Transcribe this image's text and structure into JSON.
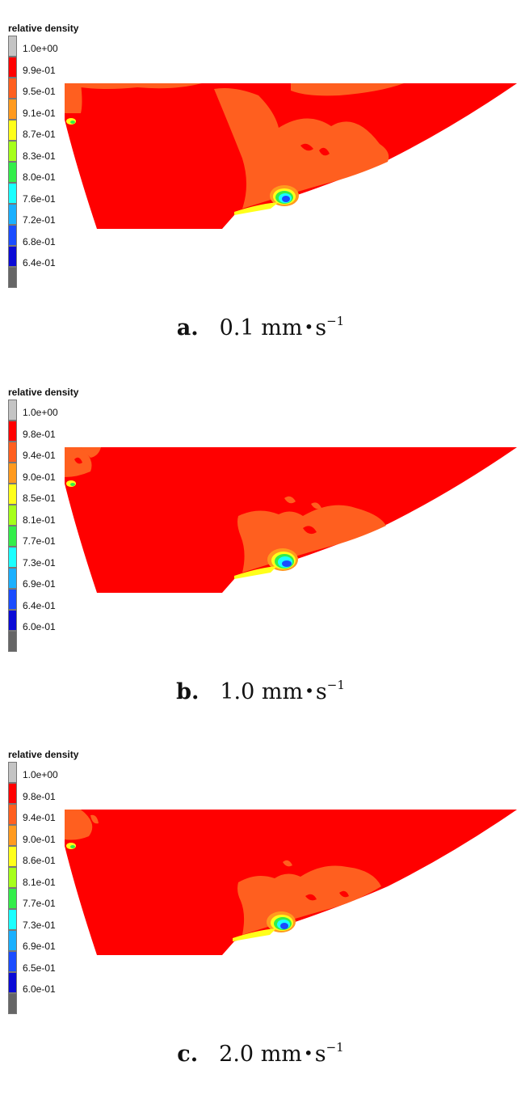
{
  "legend_title": "relative density",
  "colors": {
    "gray_top": "#c4c4c4",
    "red": "#ff0000",
    "orange_red": "#ff5f1f",
    "orange": "#ff9a1e",
    "yellow": "#ffff1a",
    "yellow_green": "#a6ff1a",
    "green": "#33ee4a",
    "cyan": "#1affff",
    "sky": "#1ab0ff",
    "blue": "#1a4cff",
    "dark_blue": "#0a0ad6",
    "gray_bottom": "#666666"
  },
  "panels": [
    {
      "letter": "a.",
      "value": "0.1",
      "unit": "mm",
      "unit2": "s",
      "exponent": "−1",
      "ticks": [
        "1.0e+00",
        "9.9e-01",
        "9.5e-01",
        "9.1e-01",
        "8.7e-01",
        "8.3e-01",
        "8.0e-01",
        "7.6e-01",
        "7.2e-01",
        "6.8e-01",
        "6.4e-01"
      ]
    },
    {
      "letter": "b.",
      "value": "1.0",
      "unit": "mm",
      "unit2": "s",
      "exponent": "−1",
      "ticks": [
        "1.0e+00",
        "9.8e-01",
        "9.4e-01",
        "9.0e-01",
        "8.5e-01",
        "8.1e-01",
        "7.7e-01",
        "7.3e-01",
        "6.9e-01",
        "6.4e-01",
        "6.0e-01"
      ]
    },
    {
      "letter": "c.",
      "value": "2.0",
      "unit": "mm",
      "unit2": "s",
      "exponent": "−1",
      "ticks": [
        "1.0e+00",
        "9.8e-01",
        "9.4e-01",
        "9.0e-01",
        "8.6e-01",
        "8.1e-01",
        "7.7e-01",
        "7.3e-01",
        "6.9e-01",
        "6.5e-01",
        "6.0e-01"
      ]
    }
  ]
}
